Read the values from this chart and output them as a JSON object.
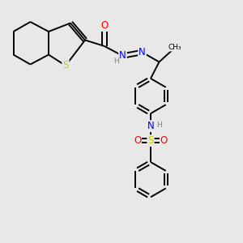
{
  "bg_color": "#e8e8e8",
  "bond_color": "#000000",
  "bond_width": 1.4,
  "atom_colors": {
    "O": "#ff0000",
    "N": "#0000ff",
    "S_thio": "#cccc00",
    "S_sulf": "#cccc00",
    "H": "#808080",
    "C": "#000000"
  },
  "xlim": [
    0,
    10
  ],
  "ylim": [
    0,
    10
  ],
  "figsize": [
    3.0,
    3.0
  ],
  "dpi": 100
}
